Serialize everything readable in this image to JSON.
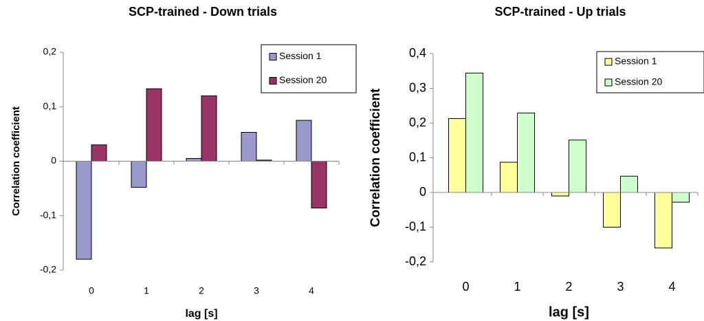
{
  "chart_data": [
    {
      "type": "bar",
      "title": "SCP-trained - Down trials",
      "x_label": "lag [s]",
      "y_label": "Correlation coefficient",
      "categories": [
        "0",
        "1",
        "2",
        "3",
        "4"
      ],
      "series": [
        {
          "name": "Session 1",
          "color": "#9999cc",
          "values": [
            -0.18,
            -0.048,
            0.005,
            0.053,
            0.075
          ]
        },
        {
          "name": "Session 20",
          "color": "#993366",
          "values": [
            0.03,
            0.133,
            0.12,
            0.002,
            -0.086
          ]
        }
      ],
      "ylim": [
        -0.2,
        0.2
      ],
      "yticks": [
        {
          "value": -0.2,
          "label": "-0,2"
        },
        {
          "value": -0.1,
          "label": "-0,1"
        },
        0,
        {
          "value": 0.1,
          "label": "0,1"
        },
        {
          "value": 0.2,
          "label": "0,2"
        }
      ],
      "legend": "upper right",
      "grid": false
    },
    {
      "type": "bar",
      "title": "SCP-trained - Up trials",
      "x_label": "lag [s]",
      "y_label": "Correlation coefficient",
      "categories": [
        "0",
        "1",
        "2",
        "3",
        "4"
      ],
      "series": [
        {
          "name": "Session 1",
          "color": "#ffff99",
          "values": [
            0.213,
            0.087,
            -0.01,
            -0.1,
            -0.16
          ]
        },
        {
          "name": "Session 20",
          "color": "#ccffcc",
          "values": [
            0.344,
            0.229,
            0.151,
            0.047,
            -0.028
          ]
        }
      ],
      "ylim": [
        -0.2,
        0.4
      ],
      "yticks": [
        {
          "value": -0.2,
          "label": "-0,2"
        },
        {
          "value": -0.1,
          "label": "-0,1"
        },
        0,
        {
          "value": 0.1,
          "label": "0,1"
        },
        {
          "value": 0.2,
          "label": "0,2"
        },
        {
          "value": 0.3,
          "label": "0,3"
        },
        {
          "value": 0.4,
          "label": "0,4"
        }
      ],
      "legend": "upper right",
      "grid": false
    }
  ]
}
